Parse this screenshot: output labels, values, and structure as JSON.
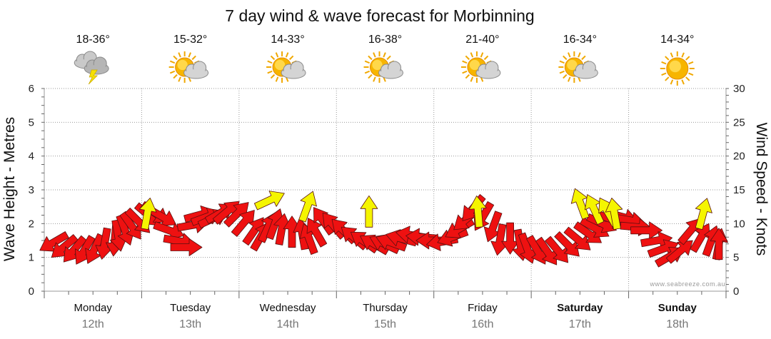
{
  "chart_data": {
    "type": "scatter",
    "title": "7 day wind & wave forecast for Morbinning",
    "ylabel_left": "Wave Height - Metres",
    "ylabel_right": "Wind Speed - Knots",
    "ylim_left": [
      0,
      6
    ],
    "ylim_right": [
      0,
      30
    ],
    "yticks_left": [
      "0",
      "1",
      "2",
      "3",
      "4",
      "5",
      "6"
    ],
    "yticks_right": [
      "0",
      "5",
      "10",
      "15",
      "20",
      "25",
      "30"
    ],
    "credit": "www.seabreeze.com.au",
    "colors": {
      "wind": "#ee1111",
      "gust": "#f5f500",
      "grid": "#9a9a9a",
      "date": "#777777"
    },
    "days": [
      {
        "name": "Monday",
        "date": "12th",
        "temp": "18-36°",
        "icon": "storm-cloud-icon",
        "bold": false
      },
      {
        "name": "Tuesday",
        "date": "13th",
        "temp": "15-32°",
        "icon": "partly-cloudy-icon",
        "bold": false
      },
      {
        "name": "Wednesday",
        "date": "14th",
        "temp": "14-33°",
        "icon": "partly-cloudy-icon",
        "bold": false
      },
      {
        "name": "Thursday",
        "date": "15th",
        "temp": "16-38°",
        "icon": "partly-cloudy-icon",
        "bold": false
      },
      {
        "name": "Friday",
        "date": "16th",
        "temp": "21-40°",
        "icon": "partly-cloudy-icon",
        "bold": false
      },
      {
        "name": "Saturday",
        "date": "17th",
        "temp": "16-34°",
        "icon": "partly-cloudy-icon",
        "bold": true
      },
      {
        "name": "Sunday",
        "date": "18th",
        "temp": "14-34°",
        "icon": "sunny-icon",
        "bold": true
      }
    ],
    "wind_series": [
      [
        0.05,
        7.2,
        150
      ],
      [
        0.2,
        6.5,
        140
      ],
      [
        0.35,
        6.1,
        130
      ],
      [
        0.5,
        6.0,
        120
      ],
      [
        0.65,
        6.2,
        115
      ],
      [
        0.8,
        7.0,
        100
      ],
      [
        0.95,
        7.5,
        95
      ],
      [
        1.0,
        8.2,
        80
      ],
      [
        1.1,
        9.0,
        70
      ],
      [
        1.2,
        9.6,
        55
      ],
      [
        1.3,
        10.3,
        45
      ],
      [
        1.45,
        11.2,
        40
      ],
      [
        1.55,
        11.5,
        35
      ],
      [
        1.65,
        11.0,
        30
      ],
      [
        1.75,
        9.0,
        20
      ],
      [
        1.9,
        7.4,
        10
      ],
      [
        2.0,
        6.5,
        0
      ],
      [
        2.1,
        9.8,
        -10
      ],
      [
        2.2,
        11.3,
        -15
      ],
      [
        2.3,
        11.0,
        -20
      ],
      [
        2.4,
        10.8,
        -25
      ],
      [
        2.5,
        11.6,
        -30
      ],
      [
        2.6,
        11.8,
        -40
      ],
      [
        2.75,
        11.5,
        -45
      ],
      [
        2.85,
        10.2,
        -50
      ],
      [
        3.0,
        9.0,
        -55
      ],
      [
        3.1,
        8.2,
        -60
      ],
      [
        3.2,
        9.5,
        -65
      ],
      [
        3.3,
        10.0,
        -70
      ],
      [
        3.4,
        9.2,
        -80
      ],
      [
        3.55,
        8.8,
        -90
      ],
      [
        3.7,
        8.5,
        -100
      ],
      [
        3.8,
        7.8,
        -110
      ],
      [
        3.9,
        8.8,
        -120
      ],
      [
        4.0,
        10.5,
        -125
      ],
      [
        4.15,
        9.8,
        -130
      ],
      [
        4.3,
        9.0,
        -135
      ],
      [
        4.45,
        8.0,
        -140
      ],
      [
        4.6,
        7.4,
        -145
      ],
      [
        4.75,
        7.0,
        -150
      ],
      [
        4.9,
        7.0,
        -155
      ],
      [
        5.0,
        7.2,
        -160
      ],
      [
        5.15,
        7.8,
        -165
      ],
      [
        5.3,
        8.3,
        -170
      ],
      [
        5.45,
        8.0,
        -175
      ],
      [
        5.6,
        7.5,
        180
      ],
      [
        5.75,
        7.3,
        170
      ],
      [
        5.9,
        8.0,
        160
      ],
      [
        6.0,
        9.2,
        150
      ],
      [
        6.1,
        10.6,
        140
      ],
      [
        6.2,
        12.2,
        130
      ],
      [
        6.35,
        11.0,
        120
      ],
      [
        6.5,
        9.5,
        110
      ],
      [
        6.6,
        7.6,
        100
      ],
      [
        6.75,
        7.8,
        90
      ],
      [
        6.9,
        6.8,
        80
      ],
      [
        7.0,
        6.3,
        70
      ],
      [
        7.15,
        6.0,
        60
      ],
      [
        7.3,
        5.8,
        55
      ],
      [
        7.45,
        6.0,
        50
      ],
      [
        7.6,
        6.8,
        45
      ],
      [
        7.75,
        7.6,
        40
      ],
      [
        7.9,
        8.5,
        35
      ],
      [
        8.0,
        9.3,
        30
      ],
      [
        8.1,
        10.0,
        25
      ],
      [
        8.25,
        10.6,
        20
      ],
      [
        8.4,
        11.0,
        15
      ],
      [
        8.5,
        10.5,
        10
      ],
      [
        8.6,
        9.5,
        5
      ],
      [
        8.75,
        9.0,
        0
      ],
      [
        8.9,
        7.5,
        -10
      ],
      [
        9.0,
        6.3,
        -20
      ],
      [
        9.1,
        5.2,
        -30
      ],
      [
        9.25,
        6.0,
        -40
      ],
      [
        9.4,
        9.0,
        -50
      ],
      [
        9.55,
        8.0,
        -60
      ],
      [
        9.7,
        7.5,
        -70
      ],
      [
        9.85,
        7.0,
        -80
      ],
      [
        10.0,
        7.0,
        -90
      ]
    ],
    "gust_series": [
      [
        1.45,
        11.5,
        -80
      ],
      [
        3.25,
        13.5,
        -25
      ],
      [
        3.8,
        12.6,
        -70
      ],
      [
        4.7,
        11.8,
        -90
      ],
      [
        6.3,
        11.8,
        -95
      ],
      [
        7.8,
        13.0,
        -110
      ],
      [
        8.0,
        12.2,
        -115
      ],
      [
        8.2,
        11.8,
        -120
      ],
      [
        8.3,
        11.5,
        -100
      ],
      [
        9.6,
        11.5,
        -75
      ]
    ]
  }
}
